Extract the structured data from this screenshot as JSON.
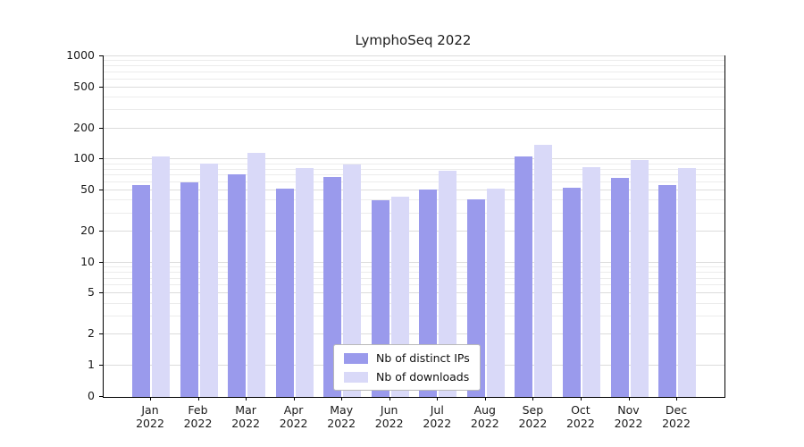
{
  "title": "LymphoSeq 2022",
  "chart_data": {
    "type": "bar",
    "title": "LymphoSeq 2022",
    "scale": "symlog",
    "categories": [
      "Jan",
      "Feb",
      "Mar",
      "Apr",
      "May",
      "Jun",
      "Jul",
      "Aug",
      "Sep",
      "Oct",
      "Nov",
      "Dec"
    ],
    "year": "2022",
    "series": [
      {
        "name": "Nb of distinct IPs",
        "color": "#9a9aec",
        "values": [
          56,
          60,
          72,
          52,
          68,
          40,
          51,
          41,
          107,
          53,
          66,
          56
        ]
      },
      {
        "name": "Nb of downloads",
        "color": "#d9d9f8",
        "values": [
          108,
          91,
          117,
          83,
          89,
          44,
          77,
          52,
          140,
          85,
          98,
          82
        ]
      }
    ],
    "yticks": [
      0,
      1,
      2,
      5,
      10,
      20,
      50,
      100,
      200,
      500,
      1000
    ],
    "ylim": [
      0,
      1000
    ],
    "grid": "horizontal",
    "legend_position": "lower center"
  }
}
